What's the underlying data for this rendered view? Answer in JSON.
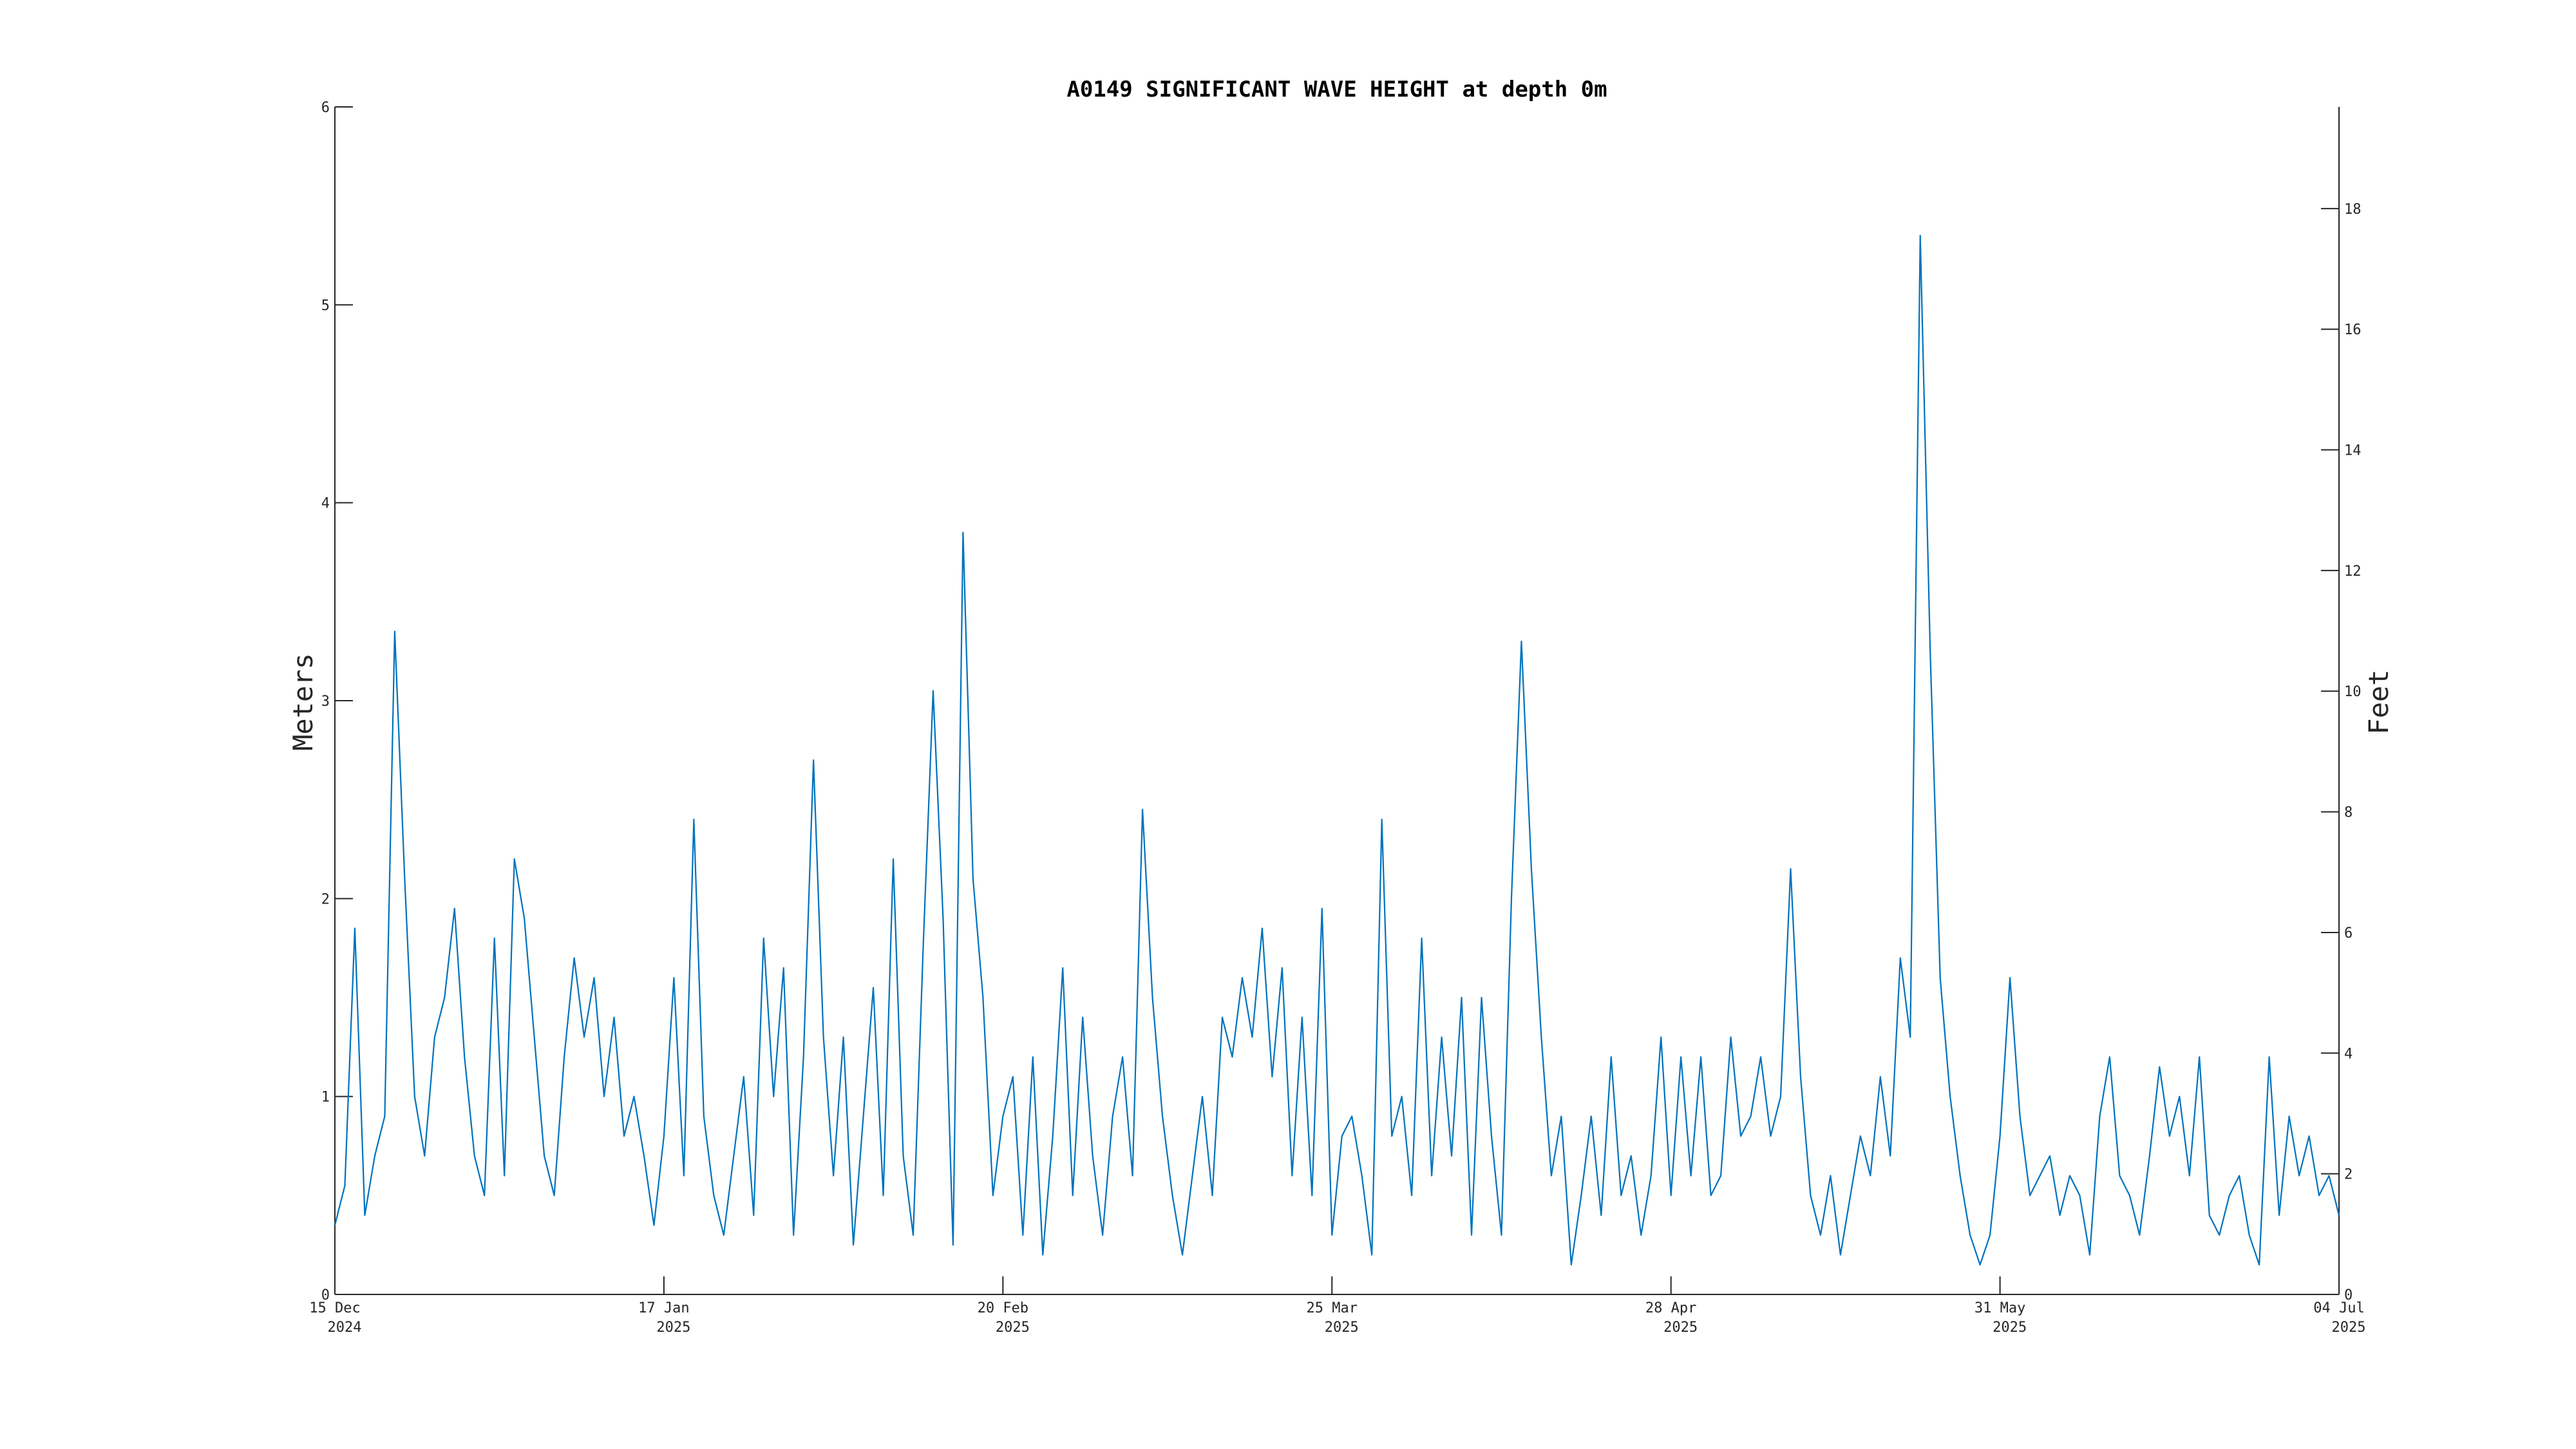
{
  "chart_data": {
    "type": "line",
    "title": "A0149 SIGNIFICANT WAVE HEIGHT at depth 0m",
    "ylabel": "Meters",
    "y2label": "Feet",
    "x": [
      "2024-12-15",
      "2024-12-16",
      "2024-12-17",
      "2024-12-18",
      "2024-12-19",
      "2024-12-20",
      "2024-12-21",
      "2024-12-22",
      "2024-12-23",
      "2024-12-24",
      "2024-12-25",
      "2024-12-26",
      "2024-12-27",
      "2024-12-28",
      "2024-12-29",
      "2024-12-30",
      "2024-12-31",
      "2025-01-01",
      "2025-01-02",
      "2025-01-03",
      "2025-01-04",
      "2025-01-05",
      "2025-01-06",
      "2025-01-07",
      "2025-01-08",
      "2025-01-09",
      "2025-01-10",
      "2025-01-11",
      "2025-01-12",
      "2025-01-13",
      "2025-01-14",
      "2025-01-15",
      "2025-01-16",
      "2025-01-17",
      "2025-01-18",
      "2025-01-19",
      "2025-01-20",
      "2025-01-21",
      "2025-01-22",
      "2025-01-23",
      "2025-01-24",
      "2025-01-25",
      "2025-01-26",
      "2025-01-27",
      "2025-01-28",
      "2025-01-29",
      "2025-01-30",
      "2025-01-31",
      "2025-02-01",
      "2025-02-02",
      "2025-02-03",
      "2025-02-04",
      "2025-02-05",
      "2025-02-06",
      "2025-02-07",
      "2025-02-08",
      "2025-02-09",
      "2025-02-10",
      "2025-02-11",
      "2025-02-12",
      "2025-02-13",
      "2025-02-14",
      "2025-02-15",
      "2025-02-16",
      "2025-02-17",
      "2025-02-18",
      "2025-02-19",
      "2025-02-20",
      "2025-02-21",
      "2025-02-22",
      "2025-02-23",
      "2025-02-24",
      "2025-02-25",
      "2025-02-26",
      "2025-02-27",
      "2025-02-28",
      "2025-03-01",
      "2025-03-02",
      "2025-03-03",
      "2025-03-04",
      "2025-03-05",
      "2025-03-06",
      "2025-03-07",
      "2025-03-08",
      "2025-03-09",
      "2025-03-10",
      "2025-03-11",
      "2025-03-12",
      "2025-03-13",
      "2025-03-14",
      "2025-03-15",
      "2025-03-16",
      "2025-03-17",
      "2025-03-18",
      "2025-03-19",
      "2025-03-20",
      "2025-03-21",
      "2025-03-22",
      "2025-03-23",
      "2025-03-24",
      "2025-03-25",
      "2025-03-26",
      "2025-03-27",
      "2025-03-28",
      "2025-03-29",
      "2025-03-30",
      "2025-03-31",
      "2025-04-01",
      "2025-04-02",
      "2025-04-03",
      "2025-04-04",
      "2025-04-05",
      "2025-04-06",
      "2025-04-07",
      "2025-04-08",
      "2025-04-09",
      "2025-04-10",
      "2025-04-11",
      "2025-04-12",
      "2025-04-13",
      "2025-04-14",
      "2025-04-15",
      "2025-04-16",
      "2025-04-17",
      "2025-04-18",
      "2025-04-19",
      "2025-04-20",
      "2025-04-21",
      "2025-04-22",
      "2025-04-23",
      "2025-04-24",
      "2025-04-25",
      "2025-04-26",
      "2025-04-27",
      "2025-04-28",
      "2025-04-29",
      "2025-04-30",
      "2025-05-01",
      "2025-05-02",
      "2025-05-03",
      "2025-05-04",
      "2025-05-05",
      "2025-05-06",
      "2025-05-07",
      "2025-05-08",
      "2025-05-09",
      "2025-05-10",
      "2025-05-11",
      "2025-05-12",
      "2025-05-13",
      "2025-05-14",
      "2025-05-15",
      "2025-05-16",
      "2025-05-17",
      "2025-05-18",
      "2025-05-19",
      "2025-05-20",
      "2025-05-21",
      "2025-05-22",
      "2025-05-23",
      "2025-05-24",
      "2025-05-25",
      "2025-05-26",
      "2025-05-27",
      "2025-05-28",
      "2025-05-29",
      "2025-05-30",
      "2025-05-31",
      "2025-06-01",
      "2025-06-02",
      "2025-06-03",
      "2025-06-04",
      "2025-06-05",
      "2025-06-06",
      "2025-06-07",
      "2025-06-08",
      "2025-06-09",
      "2025-06-10",
      "2025-06-11",
      "2025-06-12",
      "2025-06-13",
      "2025-06-14",
      "2025-06-15",
      "2025-06-16",
      "2025-06-17",
      "2025-06-18",
      "2025-06-19",
      "2025-06-20",
      "2025-06-21",
      "2025-06-22",
      "2025-06-23",
      "2025-06-24",
      "2025-06-25",
      "2025-06-26",
      "2025-06-27",
      "2025-06-28",
      "2025-06-29",
      "2025-06-30",
      "2025-07-01",
      "2025-07-02",
      "2025-07-03",
      "2025-07-04"
    ],
    "series": [
      {
        "color": "#0072bd",
        "values": [
          0.35,
          0.55,
          1.85,
          0.4,
          0.7,
          0.9,
          3.35,
          2.1,
          1.0,
          0.7,
          1.3,
          1.5,
          1.95,
          1.2,
          0.7,
          0.5,
          1.8,
          0.6,
          2.2,
          1.9,
          1.3,
          0.7,
          0.5,
          1.2,
          1.7,
          1.3,
          1.6,
          1.0,
          1.4,
          0.8,
          1.0,
          0.7,
          0.35,
          0.8,
          1.6,
          0.6,
          2.4,
          0.9,
          0.5,
          0.3,
          0.7,
          1.1,
          0.4,
          1.8,
          1.0,
          1.65,
          0.3,
          1.2,
          2.7,
          1.3,
          0.6,
          1.3,
          0.25,
          0.9,
          1.55,
          0.5,
          2.2,
          0.7,
          0.3,
          1.75,
          3.05,
          1.9,
          0.25,
          3.85,
          2.1,
          1.5,
          0.5,
          0.9,
          1.1,
          0.3,
          1.2,
          0.2,
          0.8,
          1.65,
          0.5,
          1.4,
          0.7,
          0.3,
          0.9,
          1.2,
          0.6,
          2.45,
          1.5,
          0.9,
          0.5,
          0.2,
          0.6,
          1.0,
          0.5,
          1.4,
          1.2,
          1.6,
          1.3,
          1.85,
          1.1,
          1.65,
          0.6,
          1.4,
          0.5,
          1.95,
          0.3,
          0.8,
          0.9,
          0.6,
          0.2,
          2.4,
          0.8,
          1.0,
          0.5,
          1.8,
          0.6,
          1.3,
          0.7,
          1.5,
          0.3,
          1.5,
          0.8,
          0.3,
          2.0,
          3.3,
          2.15,
          1.3,
          0.6,
          0.9,
          0.15,
          0.5,
          0.9,
          0.4,
          1.2,
          0.5,
          0.7,
          0.3,
          0.6,
          1.3,
          0.5,
          1.2,
          0.6,
          1.2,
          0.5,
          0.6,
          1.3,
          0.8,
          0.9,
          1.2,
          0.8,
          1.0,
          2.15,
          1.1,
          0.5,
          0.3,
          0.6,
          0.2,
          0.5,
          0.8,
          0.6,
          1.1,
          0.7,
          1.7,
          1.3,
          5.35,
          3.25,
          1.6,
          1.0,
          0.6,
          0.3,
          0.15,
          0.3,
          0.8,
          1.6,
          0.9,
          0.5,
          0.6,
          0.7,
          0.4,
          0.6,
          0.5,
          0.2,
          0.9,
          1.2,
          0.6,
          0.5,
          0.3,
          0.7,
          1.15,
          0.8,
          1.0,
          0.6,
          1.2,
          0.4,
          0.3,
          0.5,
          0.6,
          0.3,
          0.15,
          1.2,
          0.4,
          0.9,
          0.6,
          0.8,
          0.5,
          0.6,
          0.4
        ]
      }
    ],
    "xlim": [
      "2024-12-15",
      "2025-07-04"
    ],
    "xticks": [
      {
        "value": "2024-12-15",
        "label": [
          "15 Dec",
          "2024"
        ]
      },
      {
        "value": "2025-01-17",
        "label": [
          "17 Jan",
          "2025"
        ]
      },
      {
        "value": "2025-02-20",
        "label": [
          "20 Feb",
          "2025"
        ]
      },
      {
        "value": "2025-03-25",
        "label": [
          "25 Mar",
          "2025"
        ]
      },
      {
        "value": "2025-04-28",
        "label": [
          "28 Apr",
          "2025"
        ]
      },
      {
        "value": "2025-05-31",
        "label": [
          "31 May",
          "2025"
        ]
      },
      {
        "value": "2025-07-04",
        "label": [
          "04 Jul",
          "2025"
        ]
      }
    ],
    "ylim": [
      0,
      6
    ],
    "yticks": [
      0,
      1,
      2,
      3,
      4,
      5,
      6
    ],
    "y2lim": [
      0,
      19.685
    ],
    "y2ticks": [
      0,
      2,
      4,
      6,
      8,
      10,
      12,
      14,
      16,
      18
    ],
    "grid": false
  }
}
